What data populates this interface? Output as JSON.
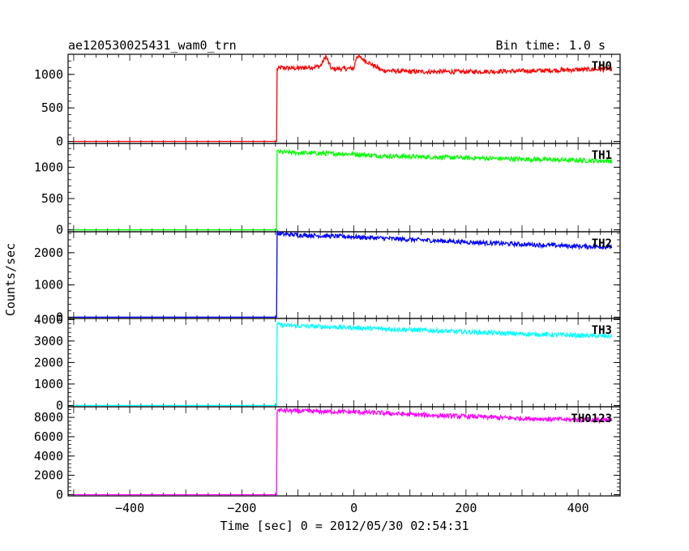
{
  "chart_data": {
    "type": "line",
    "title": "ae120530025431_wam0_trn",
    "bin_time": "Bin time: 1.0 s",
    "xlabel": "Time [sec] 0 = 2012/05/30 02:54:31",
    "ylabel": "Counts/sec",
    "xlim": [
      -510,
      475
    ],
    "x_ticks": [
      -400,
      -200,
      0,
      200,
      400
    ],
    "grid": false,
    "onset_time": -137,
    "data_end_time": 460,
    "panels": [
      {
        "name": "TH0",
        "color": "#ff0000",
        "ylim": [
          -30,
          1300
        ],
        "y_ticks": [
          0,
          500,
          1000
        ],
        "pre_level": 0,
        "x": [
          -500,
          -140,
          -137,
          -130,
          -100,
          -60,
          -50,
          -40,
          0,
          5,
          50,
          100,
          200,
          300,
          400,
          460
        ],
        "values": [
          0,
          0,
          1080,
          1100,
          1090,
          1120,
          1270,
          1080,
          1090,
          1280,
          1060,
          1040,
          1040,
          1050,
          1070,
          1080
        ]
      },
      {
        "name": "TH1",
        "color": "#00ff00",
        "ylim": [
          -30,
          1380
        ],
        "y_ticks": [
          0,
          500,
          1000
        ],
        "pre_level": 0,
        "x": [
          -500,
          -140,
          -137,
          -130,
          -100,
          -50,
          0,
          50,
          100,
          200,
          300,
          400,
          460
        ],
        "values": [
          0,
          0,
          1250,
          1240,
          1230,
          1220,
          1210,
          1180,
          1170,
          1150,
          1130,
          1110,
          1100
        ]
      },
      {
        "name": "TH2",
        "color": "#0000ff",
        "ylim": [
          -40,
          2650
        ],
        "y_ticks": [
          0,
          1000,
          2000
        ],
        "pre_level": 0,
        "x": [
          -500,
          -140,
          -137,
          -130,
          -100,
          -50,
          0,
          50,
          100,
          200,
          300,
          400,
          460
        ],
        "values": [
          0,
          0,
          2600,
          2580,
          2550,
          2520,
          2490,
          2450,
          2410,
          2330,
          2260,
          2200,
          2180
        ]
      },
      {
        "name": "TH3",
        "color": "#00ffff",
        "ylim": [
          -60,
          4050
        ],
        "y_ticks": [
          0,
          1000,
          2000,
          3000,
          4000
        ],
        "pre_level": 0,
        "x": [
          -500,
          -140,
          -137,
          -130,
          -100,
          -50,
          0,
          50,
          100,
          200,
          300,
          400,
          460
        ],
        "values": [
          0,
          0,
          3760,
          3740,
          3700,
          3660,
          3620,
          3570,
          3520,
          3420,
          3330,
          3260,
          3220
        ]
      },
      {
        "name": "TH0123",
        "color": "#ff00ff",
        "ylim": [
          -130,
          9100
        ],
        "y_ticks": [
          0,
          2000,
          4000,
          6000,
          8000
        ],
        "pre_level": 0,
        "x": [
          -500,
          -140,
          -137,
          -130,
          -100,
          -50,
          0,
          50,
          100,
          200,
          300,
          400,
          460
        ],
        "values": [
          0,
          0,
          8750,
          8720,
          8650,
          8600,
          8560,
          8450,
          8300,
          8100,
          7900,
          7750,
          7700
        ]
      }
    ]
  }
}
